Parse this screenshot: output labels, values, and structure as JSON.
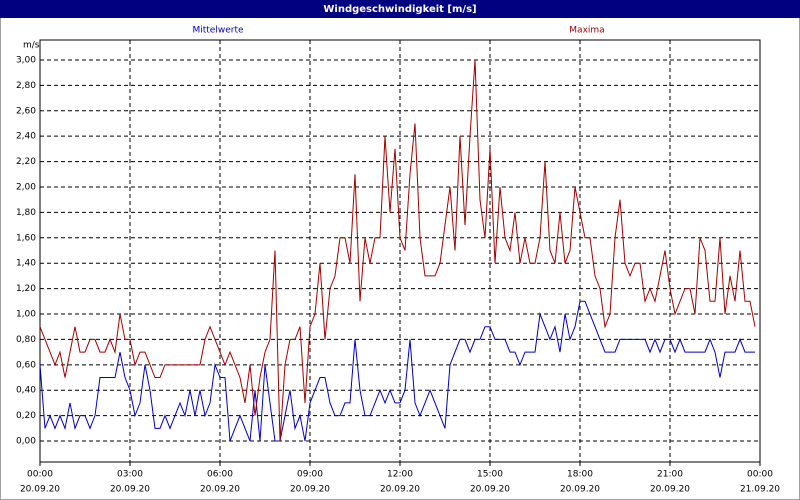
{
  "chart_data": {
    "type": "line",
    "title": "Windgeschwindigkeit [m/s]",
    "y_label": "m/s",
    "grid": true,
    "xlim": [
      0,
      1440
    ],
    "ylim": [
      -0.165,
      3.157
    ],
    "xticks": [
      {
        "value": 0,
        "label": "00:00",
        "date": "20.09.20"
      },
      {
        "value": 180,
        "label": "03:00",
        "date": "20.09.20"
      },
      {
        "value": 360,
        "label": "06:00",
        "date": "20.09.20"
      },
      {
        "value": 540,
        "label": "09:00",
        "date": "20.09.20"
      },
      {
        "value": 720,
        "label": "12:00",
        "date": "20.09.20"
      },
      {
        "value": 900,
        "label": "15:00",
        "date": "20.09.20"
      },
      {
        "value": 1080,
        "label": "18:00",
        "date": "20.09.20"
      },
      {
        "value": 1260,
        "label": "21:00",
        "date": "20.09.20"
      },
      {
        "value": 1440,
        "label": "00:00",
        "date": "21.09.20"
      }
    ],
    "yticks": [
      {
        "value": 0,
        "label": "0,00"
      },
      {
        "value": 0.2,
        "label": "0,20"
      },
      {
        "value": 0.4,
        "label": "0,40"
      },
      {
        "value": 0.6,
        "label": "0,60"
      },
      {
        "value": 0.8,
        "label": "0,80"
      },
      {
        "value": 1,
        "label": "1,00"
      },
      {
        "value": 1.2,
        "label": "1,20"
      },
      {
        "value": 1.4,
        "label": "1,40"
      },
      {
        "value": 1.6,
        "label": "1,60"
      },
      {
        "value": 1.8,
        "label": "1,80"
      },
      {
        "value": 2,
        "label": "2,00"
      },
      {
        "value": 2.2,
        "label": "2,20"
      },
      {
        "value": 2.4,
        "label": "2,40"
      },
      {
        "value": 2.6,
        "label": "2,60"
      },
      {
        "value": 2.8,
        "label": "2,80"
      },
      {
        "value": 3,
        "label": "3,00"
      }
    ],
    "x": [
      0,
      10,
      20,
      30,
      40,
      50,
      60,
      70,
      80,
      90,
      100,
      110,
      120,
      130,
      140,
      150,
      160,
      170,
      180,
      190,
      200,
      210,
      220,
      230,
      240,
      250,
      260,
      270,
      280,
      290,
      300,
      310,
      320,
      330,
      340,
      350,
      360,
      370,
      380,
      390,
      400,
      410,
      420,
      430,
      440,
      450,
      460,
      470,
      480,
      490,
      500,
      510,
      520,
      530,
      540,
      550,
      560,
      570,
      580,
      590,
      600,
      610,
      620,
      630,
      640,
      650,
      660,
      670,
      680,
      690,
      700,
      710,
      720,
      730,
      740,
      750,
      760,
      770,
      780,
      790,
      800,
      810,
      820,
      830,
      840,
      850,
      860,
      870,
      880,
      890,
      900,
      910,
      920,
      930,
      940,
      950,
      960,
      970,
      980,
      990,
      1000,
      1010,
      1020,
      1030,
      1040,
      1050,
      1060,
      1070,
      1080,
      1090,
      1100,
      1110,
      1120,
      1130,
      1140,
      1150,
      1160,
      1170,
      1180,
      1190,
      1200,
      1210,
      1220,
      1230,
      1240,
      1250,
      1260,
      1270,
      1280,
      1290,
      1300,
      1310,
      1320,
      1330,
      1340,
      1350,
      1360,
      1370,
      1380,
      1390,
      1400,
      1410,
      1420,
      1430
    ],
    "series": [
      {
        "name": "Mittelwerte",
        "color": "#0000c0",
        "values": [
          0.6,
          0.1,
          0.2,
          0.1,
          0.2,
          0.1,
          0.3,
          0.1,
          0.2,
          0.2,
          0.1,
          0.2,
          0.5,
          0.5,
          0.5,
          0.5,
          0.7,
          0.5,
          0.4,
          0.2,
          0.3,
          0.6,
          0.4,
          0.1,
          0.1,
          0.2,
          0.1,
          0.2,
          0.3,
          0.2,
          0.4,
          0.2,
          0.4,
          0.2,
          0.3,
          0.6,
          0.5,
          0.5,
          0.0,
          0.1,
          0.2,
          0.1,
          0.0,
          0.4,
          0.0,
          0.6,
          0.3,
          0.0,
          0.0,
          0.2,
          0.4,
          0.1,
          0.2,
          0.0,
          0.3,
          0.4,
          0.5,
          0.5,
          0.3,
          0.2,
          0.2,
          0.3,
          0.3,
          0.8,
          0.4,
          0.2,
          0.2,
          0.3,
          0.4,
          0.3,
          0.4,
          0.3,
          0.3,
          0.4,
          0.8,
          0.3,
          0.2,
          0.3,
          0.4,
          0.3,
          0.2,
          0.1,
          0.6,
          0.7,
          0.8,
          0.8,
          0.7,
          0.8,
          0.8,
          0.9,
          0.9,
          0.8,
          0.8,
          0.8,
          0.7,
          0.7,
          0.6,
          0.7,
          0.7,
          0.7,
          1.0,
          0.9,
          0.8,
          0.9,
          0.7,
          1.0,
          0.8,
          0.9,
          1.1,
          1.1,
          1.0,
          0.9,
          0.8,
          0.7,
          0.7,
          0.7,
          0.8,
          0.8,
          0.8,
          0.8,
          0.8,
          0.8,
          0.7,
          0.8,
          0.7,
          0.8,
          0.8,
          0.7,
          0.8,
          0.7,
          0.7,
          0.7,
          0.7,
          0.7,
          0.8,
          0.7,
          0.5,
          0.7,
          0.7,
          0.7,
          0.8,
          0.7,
          0.7,
          0.7
        ]
      },
      {
        "name": "Maxima",
        "color": "#a00000",
        "values": [
          0.9,
          0.8,
          0.7,
          0.6,
          0.7,
          0.5,
          0.7,
          0.9,
          0.7,
          0.7,
          0.8,
          0.8,
          0.7,
          0.7,
          0.8,
          0.7,
          1.0,
          0.8,
          0.8,
          0.6,
          0.7,
          0.7,
          0.6,
          0.5,
          0.5,
          0.6,
          0.6,
          0.6,
          0.6,
          0.6,
          0.6,
          0.6,
          0.6,
          0.8,
          0.9,
          0.8,
          0.7,
          0.6,
          0.7,
          0.6,
          0.5,
          0.3,
          0.6,
          0.2,
          0.5,
          0.7,
          0.8,
          1.5,
          0.0,
          0.6,
          0.8,
          0.8,
          0.9,
          0.3,
          0.9,
          1.0,
          1.4,
          0.8,
          1.2,
          1.3,
          1.6,
          1.6,
          1.4,
          2.1,
          1.1,
          1.6,
          1.4,
          1.6,
          1.6,
          2.4,
          1.8,
          2.3,
          1.6,
          1.5,
          2.1,
          2.5,
          1.6,
          1.3,
          1.3,
          1.3,
          1.4,
          1.7,
          2.0,
          1.5,
          2.4,
          1.7,
          2.4,
          3.0,
          1.9,
          1.6,
          2.3,
          1.4,
          2.0,
          1.6,
          1.5,
          1.8,
          1.4,
          1.6,
          1.4,
          1.4,
          1.6,
          2.2,
          1.5,
          1.4,
          1.8,
          1.4,
          1.5,
          2.0,
          1.8,
          1.6,
          1.6,
          1.3,
          1.2,
          0.9,
          1.0,
          1.6,
          1.9,
          1.4,
          1.3,
          1.4,
          1.4,
          1.1,
          1.2,
          1.1,
          1.3,
          1.5,
          1.2,
          1.0,
          1.1,
          1.2,
          1.2,
          1.0,
          1.6,
          1.5,
          1.1,
          1.1,
          1.6,
          1.0,
          1.3,
          1.1,
          1.5,
          1.1,
          1.1,
          0.9
        ]
      }
    ]
  }
}
